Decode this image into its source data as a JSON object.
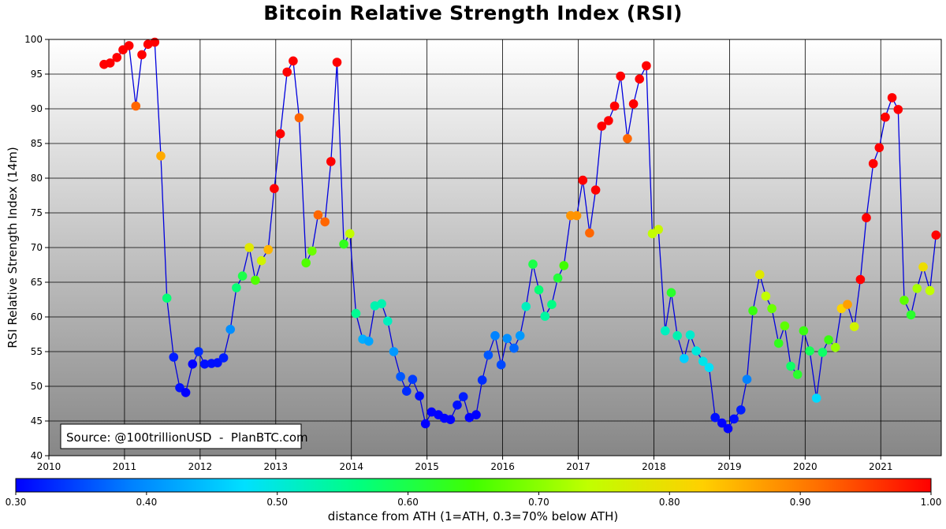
{
  "chart_data": {
    "type": "scatter",
    "title": "Bitcoin Relative Strength Index (RSI)",
    "xlabel": "",
    "ylabel": "RSI Relative Strength Index (14m)",
    "xlim": [
      2010,
      2021.8
    ],
    "ylim": [
      40,
      100
    ],
    "x_ticks": [
      "2010",
      "2011",
      "2012",
      "2013",
      "2014",
      "2015",
      "2016",
      "2017",
      "2018",
      "2019",
      "2020",
      "2021"
    ],
    "y_ticks": [
      "40",
      "45",
      "50",
      "55",
      "60",
      "65",
      "70",
      "75",
      "80",
      "85",
      "90",
      "95",
      "100"
    ],
    "grid": true,
    "annotation": "Source: @100trillionUSD  -  PlanBTC.com",
    "colorbar": {
      "label": "distance from ATH (1=ATH, 0.3=70% below ATH)",
      "range": [
        0.3,
        1.0
      ],
      "ticks": [
        "0.30",
        "0.40",
        "0.50",
        "0.60",
        "0.70",
        "0.80",
        "0.90",
        "1.00"
      ],
      "colormap": "jet"
    },
    "series": [
      {
        "line_color": "#0000dd",
        "points": [
          [
            2010.73,
            96.4,
            1.0
          ],
          [
            2010.81,
            96.6,
            1.0
          ],
          [
            2010.9,
            97.4,
            1.0
          ],
          [
            2010.98,
            98.5,
            1.0
          ],
          [
            2011.06,
            99.1,
            1.0
          ],
          [
            2011.15,
            90.4,
            0.92
          ],
          [
            2011.23,
            97.8,
            1.0
          ],
          [
            2011.31,
            99.3,
            1.0
          ],
          [
            2011.4,
            99.6,
            1.0
          ],
          [
            2011.48,
            83.2,
            0.86
          ],
          [
            2011.56,
            62.7,
            0.57
          ],
          [
            2011.65,
            54.2,
            0.32
          ],
          [
            2011.73,
            49.8,
            0.31
          ],
          [
            2011.81,
            49.1,
            0.3
          ],
          [
            2011.9,
            53.2,
            0.3
          ],
          [
            2011.98,
            55.0,
            0.33
          ],
          [
            2012.06,
            53.2,
            0.31
          ],
          [
            2012.15,
            53.3,
            0.31
          ],
          [
            2012.23,
            53.4,
            0.31
          ],
          [
            2012.31,
            54.1,
            0.32
          ],
          [
            2012.4,
            58.2,
            0.4
          ],
          [
            2012.48,
            64.2,
            0.57
          ],
          [
            2012.56,
            65.9,
            0.6
          ],
          [
            2012.65,
            70.0,
            0.78
          ],
          [
            2012.73,
            65.3,
            0.66
          ],
          [
            2012.81,
            68.1,
            0.76
          ],
          [
            2012.9,
            69.7,
            0.85
          ],
          [
            2012.98,
            78.5,
            1.0
          ],
          [
            2013.06,
            86.4,
            1.0
          ],
          [
            2013.15,
            95.3,
            1.0
          ],
          [
            2013.23,
            96.9,
            1.0
          ],
          [
            2013.31,
            88.7,
            0.92
          ],
          [
            2013.4,
            67.8,
            0.66
          ],
          [
            2013.48,
            69.5,
            0.68
          ],
          [
            2013.56,
            74.7,
            0.92
          ],
          [
            2013.65,
            73.7,
            0.92
          ],
          [
            2013.73,
            82.4,
            1.0
          ],
          [
            2013.81,
            96.7,
            1.0
          ],
          [
            2013.9,
            70.5,
            0.63
          ],
          [
            2013.98,
            72.0,
            0.74
          ],
          [
            2014.06,
            60.5,
            0.55
          ],
          [
            2014.15,
            56.8,
            0.43
          ],
          [
            2014.23,
            56.5,
            0.42
          ],
          [
            2014.31,
            61.6,
            0.53
          ],
          [
            2014.4,
            61.9,
            0.53
          ],
          [
            2014.48,
            59.4,
            0.52
          ],
          [
            2014.56,
            55.0,
            0.41
          ],
          [
            2014.65,
            51.4,
            0.36
          ],
          [
            2014.73,
            49.3,
            0.33
          ],
          [
            2014.81,
            51.0,
            0.34
          ],
          [
            2014.9,
            48.6,
            0.31
          ],
          [
            2014.98,
            44.6,
            0.3
          ],
          [
            2015.06,
            46.3,
            0.3
          ],
          [
            2015.15,
            45.9,
            0.3
          ],
          [
            2015.23,
            45.4,
            0.3
          ],
          [
            2015.31,
            45.2,
            0.3
          ],
          [
            2015.4,
            47.3,
            0.31
          ],
          [
            2015.48,
            48.5,
            0.32
          ],
          [
            2015.56,
            45.5,
            0.3
          ],
          [
            2015.65,
            45.9,
            0.3
          ],
          [
            2015.73,
            50.9,
            0.33
          ],
          [
            2015.81,
            54.5,
            0.36
          ],
          [
            2015.9,
            57.3,
            0.39
          ],
          [
            2015.98,
            53.1,
            0.35
          ],
          [
            2016.06,
            56.9,
            0.4
          ],
          [
            2016.15,
            55.5,
            0.37
          ],
          [
            2016.23,
            57.3,
            0.41
          ],
          [
            2016.31,
            61.5,
            0.52
          ],
          [
            2016.4,
            67.6,
            0.6
          ],
          [
            2016.48,
            63.9,
            0.57
          ],
          [
            2016.56,
            60.1,
            0.54
          ],
          [
            2016.65,
            61.8,
            0.56
          ],
          [
            2016.73,
            65.6,
            0.61
          ],
          [
            2016.81,
            67.4,
            0.65
          ],
          [
            2016.9,
            74.6,
            0.88
          ],
          [
            2016.98,
            74.6,
            0.88
          ],
          [
            2017.06,
            79.7,
            1.0
          ],
          [
            2017.15,
            72.1,
            0.92
          ],
          [
            2017.23,
            78.3,
            1.0
          ],
          [
            2017.31,
            87.5,
            1.0
          ],
          [
            2017.4,
            88.3,
            1.0
          ],
          [
            2017.48,
            90.4,
            1.0
          ],
          [
            2017.56,
            94.7,
            1.0
          ],
          [
            2017.65,
            85.7,
            0.92
          ],
          [
            2017.73,
            90.7,
            1.0
          ],
          [
            2017.81,
            94.3,
            1.0
          ],
          [
            2017.9,
            96.2,
            1.0
          ],
          [
            2017.98,
            72.0,
            0.74
          ],
          [
            2018.06,
            72.6,
            0.75
          ],
          [
            2018.15,
            58.0,
            0.52
          ],
          [
            2018.23,
            63.5,
            0.62
          ],
          [
            2018.31,
            57.3,
            0.53
          ],
          [
            2018.4,
            54.0,
            0.46
          ],
          [
            2018.48,
            57.4,
            0.51
          ],
          [
            2018.56,
            55.1,
            0.5
          ],
          [
            2018.65,
            53.6,
            0.49
          ],
          [
            2018.73,
            52.7,
            0.48
          ],
          [
            2018.81,
            45.5,
            0.31
          ],
          [
            2018.9,
            44.7,
            0.3
          ],
          [
            2018.98,
            43.9,
            0.3
          ],
          [
            2019.06,
            45.3,
            0.31
          ],
          [
            2019.15,
            46.6,
            0.32
          ],
          [
            2019.23,
            51.0,
            0.39
          ],
          [
            2019.31,
            60.9,
            0.64
          ],
          [
            2019.4,
            66.1,
            0.78
          ],
          [
            2019.48,
            63.0,
            0.74
          ],
          [
            2019.56,
            61.2,
            0.68
          ],
          [
            2019.65,
            56.2,
            0.63
          ],
          [
            2019.73,
            58.7,
            0.67
          ],
          [
            2019.81,
            52.9,
            0.58
          ],
          [
            2019.9,
            51.7,
            0.62
          ],
          [
            2019.98,
            58.0,
            0.64
          ],
          [
            2020.06,
            55.1,
            0.59
          ],
          [
            2020.15,
            48.3,
            0.47
          ],
          [
            2020.23,
            54.9,
            0.58
          ],
          [
            2020.31,
            56.7,
            0.64
          ],
          [
            2020.4,
            55.6,
            0.71
          ],
          [
            2020.48,
            61.2,
            0.82
          ],
          [
            2020.56,
            61.8,
            0.87
          ],
          [
            2020.65,
            58.6,
            0.76
          ],
          [
            2020.73,
            65.4,
            1.0
          ],
          [
            2020.81,
            74.3,
            1.0
          ],
          [
            2020.9,
            82.1,
            1.0
          ],
          [
            2020.98,
            84.4,
            1.0
          ],
          [
            2021.06,
            88.8,
            1.0
          ],
          [
            2021.15,
            91.6,
            1.0
          ],
          [
            2021.23,
            89.9,
            1.0
          ],
          [
            2021.31,
            62.4,
            0.67
          ],
          [
            2021.4,
            60.3,
            0.62
          ],
          [
            2021.48,
            64.1,
            0.72
          ],
          [
            2021.56,
            67.2,
            0.8
          ],
          [
            2021.65,
            63.8,
            0.74
          ],
          [
            2021.73,
            71.8,
            1.0
          ]
        ]
      }
    ]
  }
}
